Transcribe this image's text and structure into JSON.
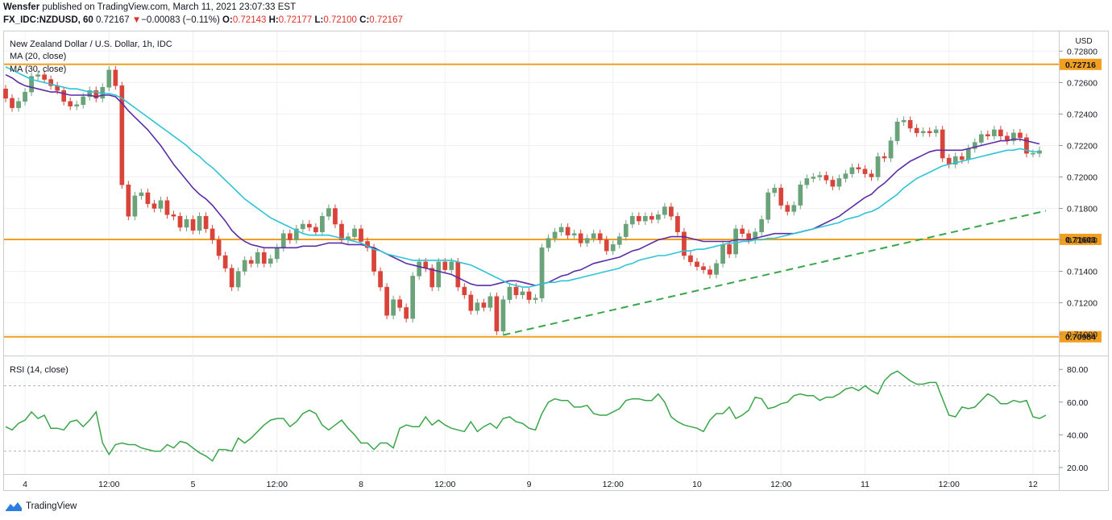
{
  "header": {
    "author": "Wensfer",
    "published_text": "published on TradingView.com, March 11, 2021 23:07:33 EST",
    "symbol": "FX_IDC:NZDUSD, 60",
    "last": "0.72167",
    "change_arrow": "▼",
    "change": "−0.00083 (−0.11%)",
    "o_label": "O:",
    "o": "0.72143",
    "h_label": "H:",
    "h": "0.72177",
    "l_label": "L:",
    "l": "0.72100",
    "c_label": "C:",
    "c": "0.72167"
  },
  "legend": {
    "title": "New Zealand Dollar / U.S. Dollar, 1h, IDC",
    "ma20": "MA (20, close)",
    "ma30": "MA (30, close)",
    "rsi": "RSI (14, close)"
  },
  "footer": {
    "brand": "TradingView"
  },
  "colors": {
    "up": "#6aa27a",
    "down": "#d9443a",
    "ma20": "#5b2ea6",
    "ma30": "#2ec4d6",
    "level": "#f29f1f",
    "trend": "#3aa64a",
    "rsi": "#3aa64a"
  },
  "chart_data": [
    {
      "type": "candlestick",
      "title": "New Zealand Dollar / U.S. Dollar, 1h, IDC",
      "currency": "USD",
      "ylim": [
        0.7088,
        0.7292
      ],
      "yticks": [
        "0.72800",
        "0.72600",
        "0.72400",
        "0.72200",
        "0.72000",
        "0.71800",
        "0.71600",
        "0.71400",
        "0.71200",
        "0.71000"
      ],
      "xticks": [
        {
          "label": "4",
          "i": 3
        },
        {
          "label": "12:00",
          "i": 16
        },
        {
          "label": "5",
          "i": 29
        },
        {
          "label": "12:00",
          "i": 42
        },
        {
          "label": "8",
          "i": 55
        },
        {
          "label": "12:00",
          "i": 68
        },
        {
          "label": "9",
          "i": 81
        },
        {
          "label": "12:00",
          "i": 94
        },
        {
          "label": "10",
          "i": 107
        },
        {
          "label": "12:00",
          "i": 120
        },
        {
          "label": "11",
          "i": 133
        },
        {
          "label": "12:00",
          "i": 146
        },
        {
          "label": "12",
          "i": 159
        }
      ],
      "x_total": 162,
      "levels": [
        {
          "label": "0.72716",
          "value": 0.72716
        },
        {
          "label": "0.71603",
          "value": 0.71603
        },
        {
          "label": "0.70984",
          "value": 0.70984
        }
      ],
      "trendline": {
        "from": [
          77,
          0.70995
        ],
        "to": [
          161,
          0.71785
        ]
      },
      "candle_closes": [
        0.725,
        0.7244,
        0.7248,
        0.7254,
        0.7264,
        0.7265,
        0.7262,
        0.7258,
        0.7255,
        0.7248,
        0.7245,
        0.7246,
        0.7251,
        0.7255,
        0.725,
        0.7257,
        0.7268,
        0.7258,
        0.7195,
        0.7175,
        0.7188,
        0.719,
        0.7183,
        0.718,
        0.7185,
        0.7176,
        0.7175,
        0.7168,
        0.7173,
        0.7166,
        0.7175,
        0.7167,
        0.716,
        0.715,
        0.7142,
        0.713,
        0.714,
        0.7147,
        0.7145,
        0.7152,
        0.7145,
        0.7148,
        0.7155,
        0.7164,
        0.716,
        0.7167,
        0.717,
        0.7168,
        0.7165,
        0.7175,
        0.718,
        0.717,
        0.716,
        0.7162,
        0.7167,
        0.7159,
        0.7155,
        0.714,
        0.713,
        0.7112,
        0.7122,
        0.7117,
        0.711,
        0.7137,
        0.7146,
        0.7142,
        0.713,
        0.7146,
        0.7141,
        0.7146,
        0.713,
        0.7125,
        0.7115,
        0.712,
        0.7117,
        0.7124,
        0.7102,
        0.7122,
        0.713,
        0.7125,
        0.7127,
        0.7122,
        0.7123,
        0.7155,
        0.7161,
        0.7165,
        0.7168,
        0.7163,
        0.7164,
        0.7158,
        0.7161,
        0.7164,
        0.716,
        0.7153,
        0.7157,
        0.7162,
        0.717,
        0.7175,
        0.7172,
        0.7175,
        0.7173,
        0.7176,
        0.7181,
        0.7175,
        0.7165,
        0.715,
        0.7146,
        0.7143,
        0.7141,
        0.7138,
        0.7145,
        0.7157,
        0.7151,
        0.7167,
        0.7164,
        0.716,
        0.7165,
        0.7173,
        0.719,
        0.7193,
        0.7182,
        0.7178,
        0.7182,
        0.7195,
        0.7199,
        0.72,
        0.7201,
        0.7198,
        0.7194,
        0.7199,
        0.7202,
        0.7206,
        0.7205,
        0.7202,
        0.72,
        0.7213,
        0.7212,
        0.7223,
        0.7235,
        0.7236,
        0.7231,
        0.7228,
        0.7229,
        0.7228,
        0.723,
        0.7212,
        0.7208,
        0.7213,
        0.7211,
        0.7218,
        0.7222,
        0.7227,
        0.7226,
        0.723,
        0.7226,
        0.7223,
        0.7228,
        0.7225,
        0.7215,
        0.7215,
        0.72167
      ],
      "series": [
        {
          "name": "MA (20, close)",
          "values": [
            0.7265,
            0.7263,
            0.726,
            0.7258,
            0.7257,
            0.7256,
            0.7255,
            0.7254,
            0.7254,
            0.7253,
            0.7252,
            0.7252,
            0.7252,
            0.7252,
            0.7251,
            0.7252,
            0.7252,
            0.7251,
            0.7247,
            0.7242,
            0.7238,
            0.7234,
            0.723,
            0.7225,
            0.722,
            0.7214,
            0.7208,
            0.7203,
            0.7198,
            0.7193,
            0.7189,
            0.7186,
            0.7182,
            0.7177,
            0.7172,
            0.7166,
            0.7162,
            0.7159,
            0.7157,
            0.7156,
            0.7155,
            0.7155,
            0.7155,
            0.7155,
            0.7155,
            0.7155,
            0.7156,
            0.7156,
            0.7156,
            0.7157,
            0.7158,
            0.7158,
            0.7158,
            0.7157,
            0.7157,
            0.7157,
            0.7156,
            0.7155,
            0.7153,
            0.7151,
            0.7149,
            0.7147,
            0.7145,
            0.7144,
            0.7143,
            0.7142,
            0.7141,
            0.714,
            0.7139,
            0.7138,
            0.7136,
            0.7134,
            0.7132,
            0.7131,
            0.7131,
            0.7131,
            0.7132,
            0.7133,
            0.7134,
            0.7134,
            0.7133,
            0.7132,
            0.7131,
            0.7132,
            0.7133,
            0.7135,
            0.7137,
            0.7138,
            0.714,
            0.7141,
            0.7143,
            0.7145,
            0.7146,
            0.7147,
            0.7148,
            0.7149,
            0.7151,
            0.7153,
            0.7154,
            0.7156,
            0.7158,
            0.716,
            0.7161,
            0.7162,
            0.7162,
            0.7162,
            0.7161,
            0.716,
            0.7159,
            0.7159,
            0.7159,
            0.7159,
            0.7159,
            0.716,
            0.716,
            0.716,
            0.7161,
            0.7162,
            0.7163,
            0.7164,
            0.7164,
            0.7164,
            0.7164,
            0.7165,
            0.7166,
            0.7167,
            0.7169,
            0.7171,
            0.7173,
            0.7175,
            0.7178,
            0.7181,
            0.7184,
            0.7187,
            0.7189,
            0.7193,
            0.7196,
            0.72,
            0.7204,
            0.7207,
            0.721,
            0.7212,
            0.7214,
            0.7216,
            0.7217,
            0.7217,
            0.7217,
            0.7217,
            0.7217,
            0.7218,
            0.7219,
            0.722,
            0.7221,
            0.7222,
            0.7223,
            0.7223,
            0.7224,
            0.7224,
            0.7223,
            0.7222,
            0.7221
          ]
        },
        {
          "name": "MA (30, close)",
          "values": [
            0.727,
            0.7268,
            0.7266,
            0.7264,
            0.7262,
            0.7261,
            0.726,
            0.7259,
            0.7258,
            0.7257,
            0.7256,
            0.7256,
            0.7255,
            0.7254,
            0.7254,
            0.7253,
            0.7253,
            0.7252,
            0.725,
            0.7247,
            0.7244,
            0.7241,
            0.7238,
            0.7235,
            0.7232,
            0.7229,
            0.7226,
            0.7223,
            0.722,
            0.7216,
            0.7213,
            0.7209,
            0.7206,
            0.7202,
            0.7198,
            0.7194,
            0.719,
            0.7186,
            0.7183,
            0.718,
            0.7177,
            0.7174,
            0.7172,
            0.717,
            0.7168,
            0.7166,
            0.7164,
            0.7163,
            0.7163,
            0.7163,
            0.7163,
            0.7162,
            0.7161,
            0.716,
            0.7159,
            0.7158,
            0.7156,
            0.7154,
            0.7153,
            0.7151,
            0.715,
            0.7149,
            0.7148,
            0.7147,
            0.7147,
            0.7147,
            0.7147,
            0.7147,
            0.7147,
            0.7147,
            0.7146,
            0.7145,
            0.7144,
            0.7142,
            0.714,
            0.7138,
            0.7136,
            0.7134,
            0.7132,
            0.7131,
            0.713,
            0.713,
            0.7131,
            0.7132,
            0.7133,
            0.7133,
            0.7134,
            0.7134,
            0.7135,
            0.7136,
            0.7137,
            0.7138,
            0.7139,
            0.714,
            0.7141,
            0.7142,
            0.7144,
            0.7145,
            0.7147,
            0.7148,
            0.7149,
            0.715,
            0.715,
            0.7151,
            0.7152,
            0.7153,
            0.7153,
            0.7154,
            0.7154,
            0.7155,
            0.7156,
            0.7157,
            0.7158,
            0.7158,
            0.7159,
            0.7159,
            0.716,
            0.716,
            0.7161,
            0.7161,
            0.7162,
            0.7163,
            0.7164,
            0.7165,
            0.7166,
            0.7167,
            0.7168,
            0.7169,
            0.717,
            0.7171,
            0.7173,
            0.7174,
            0.7175,
            0.7177,
            0.7178,
            0.718,
            0.7183,
            0.7186,
            0.7189,
            0.7193,
            0.7196,
            0.7199,
            0.7201,
            0.7203,
            0.7205,
            0.7207,
            0.7208,
            0.7209,
            0.721,
            0.7211,
            0.7212,
            0.7213,
            0.7214,
            0.7215,
            0.7216,
            0.7217,
            0.7217,
            0.7218,
            0.7217,
            0.7216,
            0.7216
          ]
        }
      ]
    },
    {
      "type": "line",
      "title": "RSI (14, close)",
      "ylim": [
        17,
        87
      ],
      "yticks": [
        "80.00",
        "60.00",
        "40.00",
        "20.00"
      ],
      "bands": [
        70,
        30
      ],
      "series": [
        {
          "name": "RSI (14, close)",
          "values": [
            45,
            43,
            47,
            49,
            54,
            50,
            52,
            44,
            44,
            43,
            48,
            49,
            45,
            49,
            54,
            35,
            28,
            34,
            35,
            34,
            34,
            32,
            31,
            30,
            30,
            34,
            32,
            36,
            35,
            32,
            29,
            27,
            24,
            31,
            31,
            30,
            38,
            35,
            38,
            42,
            46,
            49,
            50,
            50,
            45,
            48,
            53,
            55,
            53,
            46,
            43,
            46,
            49,
            44,
            40,
            35,
            35,
            31,
            35,
            35,
            32,
            44,
            46,
            45,
            45,
            51,
            46,
            49,
            46,
            44,
            43,
            42,
            48,
            42,
            45,
            47,
            44,
            50,
            51,
            48,
            47,
            44,
            43,
            53,
            60,
            62,
            61,
            61,
            57,
            57,
            58,
            53,
            52,
            52,
            54,
            56,
            61,
            62,
            62,
            61,
            61,
            65,
            60,
            51,
            48,
            46,
            45,
            44,
            42,
            49,
            53,
            53,
            57,
            50,
            52,
            55,
            63,
            62,
            56,
            57,
            59,
            60,
            64,
            65,
            64,
            64,
            61,
            63,
            63,
            65,
            68,
            69,
            67,
            70,
            67,
            65,
            73,
            77,
            79,
            76,
            73,
            71,
            71,
            72,
            72,
            62,
            52,
            51,
            57,
            56,
            57,
            61,
            65,
            63,
            59,
            59,
            61,
            60,
            61,
            51,
            50,
            52
          ]
        }
      ]
    }
  ]
}
